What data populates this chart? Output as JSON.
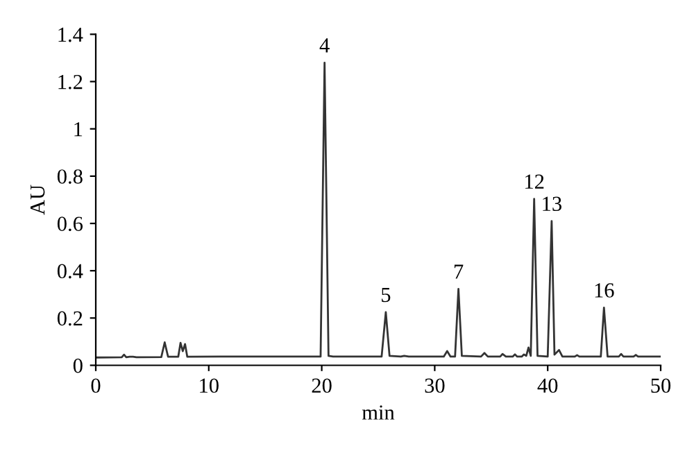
{
  "chart_data": {
    "type": "line",
    "xlabel": "min",
    "ylabel": "AU",
    "xlim": [
      0,
      50
    ],
    "ylim": [
      0,
      1.4
    ],
    "xticks": [
      0,
      10,
      20,
      30,
      40,
      50
    ],
    "yticks": [
      0,
      0.2,
      0.4,
      0.6,
      0.8,
      1,
      1.2,
      1.4
    ],
    "grid": false,
    "marker": "none",
    "line_style": "solid",
    "series": [
      {
        "color": "#333333",
        "x": [
          0,
          2.3,
          2.5,
          2.7,
          3.0,
          3.3,
          3.6,
          5.8,
          6.1,
          6.4,
          7.3,
          7.5,
          7.7,
          7.9,
          8.1,
          11,
          19.9,
          20.25,
          20.6,
          21,
          25.3,
          25.67,
          26.0,
          27,
          27.3,
          27.7,
          30.8,
          31.1,
          31.4,
          31.8,
          32.1,
          32.4,
          34.1,
          34.4,
          34.7,
          35.8,
          36.0,
          36.3,
          36.9,
          37.1,
          37.3,
          37.7,
          37.9,
          38.1,
          38.3,
          38.5,
          38.8,
          39.1,
          40.0,
          40.35,
          40.6,
          41.0,
          41.3,
          42.4,
          42.6,
          42.8,
          44.7,
          44.98,
          45.3,
          46.3,
          46.5,
          46.7,
          47.6,
          47.8,
          48,
          50
        ],
        "values": [
          0.033,
          0.034,
          0.045,
          0.034,
          0.036,
          0.036,
          0.034,
          0.035,
          0.097,
          0.036,
          0.036,
          0.095,
          0.06,
          0.09,
          0.036,
          0.037,
          0.037,
          1.28,
          0.04,
          0.037,
          0.037,
          0.225,
          0.04,
          0.037,
          0.04,
          0.037,
          0.037,
          0.06,
          0.037,
          0.037,
          0.323,
          0.04,
          0.037,
          0.052,
          0.037,
          0.037,
          0.048,
          0.037,
          0.037,
          0.046,
          0.037,
          0.037,
          0.046,
          0.04,
          0.075,
          0.04,
          0.704,
          0.04,
          0.037,
          0.61,
          0.045,
          0.065,
          0.037,
          0.037,
          0.043,
          0.037,
          0.037,
          0.244,
          0.037,
          0.037,
          0.048,
          0.037,
          0.037,
          0.044,
          0.037,
          0.037
        ]
      }
    ],
    "annotations": [
      {
        "text": "4",
        "x": 20.25,
        "y": 1.28
      },
      {
        "text": "5",
        "x": 25.67,
        "y": 0.225
      },
      {
        "text": "7",
        "x": 32.1,
        "y": 0.323
      },
      {
        "text": "12",
        "x": 38.8,
        "y": 0.704
      },
      {
        "text": "13",
        "x": 40.35,
        "y": 0.61
      },
      {
        "text": "16",
        "x": 44.98,
        "y": 0.244
      }
    ]
  }
}
